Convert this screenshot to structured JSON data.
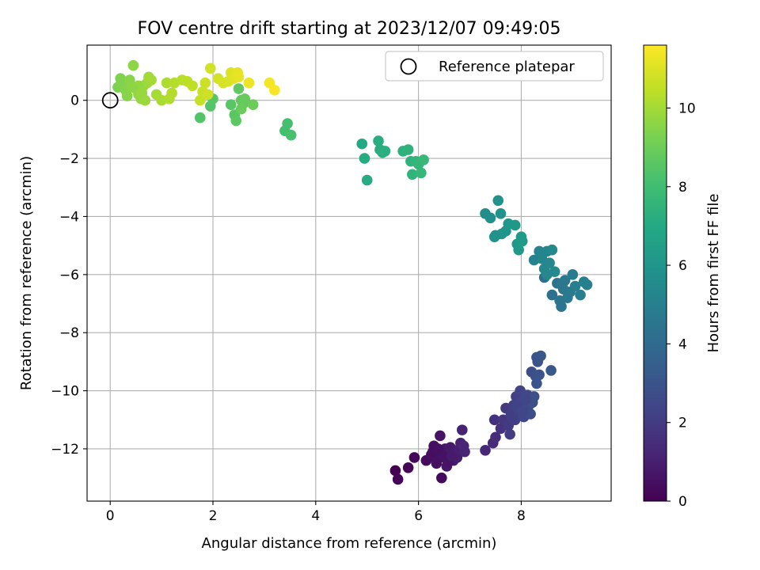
{
  "chart_data": {
    "type": "scatter",
    "title": "FOV centre drift starting at 2023/12/07 09:49:05",
    "xlabel": "Angular distance from reference (arcmin)",
    "ylabel": "Rotation from reference (arcmin)",
    "xlim": [
      -0.45,
      9.75
    ],
    "ylim": [
      -13.8,
      1.9
    ],
    "xticks": [
      0,
      2,
      4,
      6,
      8
    ],
    "xtick_labels": [
      "0",
      "2",
      "4",
      "6",
      "8"
    ],
    "yticks": [
      0,
      -2,
      -4,
      -6,
      -8,
      -10,
      -12
    ],
    "ytick_labels": [
      "0",
      "−2",
      "−4",
      "−6",
      "−8",
      "−10",
      "−12"
    ],
    "grid": true,
    "legend": {
      "position": "top-right",
      "entries": [
        "Reference platepar"
      ]
    },
    "reference_point": {
      "x": 0,
      "y": 0
    },
    "colorbar": {
      "label": "Hours from first FF file",
      "range": [
        0,
        11.6
      ],
      "ticks": [
        0,
        2,
        4,
        6,
        8,
        10
      ],
      "tick_labels": [
        "0",
        "2",
        "4",
        "6",
        "8",
        "10"
      ],
      "colormap": "viridis"
    },
    "points": [
      {
        "x": 5.55,
        "y": -12.75,
        "t": 0.0
      },
      {
        "x": 5.6,
        "y": -13.05,
        "t": 0.1
      },
      {
        "x": 5.8,
        "y": -12.65,
        "t": 0.15
      },
      {
        "x": 5.92,
        "y": -12.3,
        "t": 0.2
      },
      {
        "x": 6.45,
        "y": -13.0,
        "t": 0.3
      },
      {
        "x": 6.15,
        "y": -12.4,
        "t": 0.35
      },
      {
        "x": 6.25,
        "y": -12.2,
        "t": 0.4
      },
      {
        "x": 6.3,
        "y": -11.9,
        "t": 0.45
      },
      {
        "x": 6.35,
        "y": -12.5,
        "t": 0.5
      },
      {
        "x": 6.4,
        "y": -12.1,
        "t": 0.55
      },
      {
        "x": 6.42,
        "y": -11.55,
        "t": 0.6
      },
      {
        "x": 6.5,
        "y": -12.3,
        "t": 0.65
      },
      {
        "x": 6.52,
        "y": -12.0,
        "t": 0.7
      },
      {
        "x": 6.55,
        "y": -12.6,
        "t": 0.72
      },
      {
        "x": 6.6,
        "y": -12.2,
        "t": 0.75
      },
      {
        "x": 6.62,
        "y": -11.95,
        "t": 0.8
      },
      {
        "x": 6.68,
        "y": -12.4,
        "t": 0.85
      },
      {
        "x": 6.7,
        "y": -12.15,
        "t": 0.9
      },
      {
        "x": 6.75,
        "y": -12.3,
        "t": 0.95
      },
      {
        "x": 6.8,
        "y": -12.0,
        "t": 1.0
      },
      {
        "x": 6.82,
        "y": -11.8,
        "t": 1.05
      },
      {
        "x": 6.85,
        "y": -11.35,
        "t": 1.1
      },
      {
        "x": 6.9,
        "y": -12.1,
        "t": 1.15
      },
      {
        "x": 6.88,
        "y": -11.9,
        "t": 1.2
      },
      {
        "x": 6.35,
        "y": -12.35,
        "t": 0.5
      },
      {
        "x": 6.45,
        "y": -12.2,
        "t": 0.55
      },
      {
        "x": 6.58,
        "y": -12.45,
        "t": 0.6
      },
      {
        "x": 6.28,
        "y": -12.1,
        "t": 0.42
      },
      {
        "x": 6.65,
        "y": -12.25,
        "t": 0.82
      },
      {
        "x": 6.38,
        "y": -12.0,
        "t": 0.5
      },
      {
        "x": 7.3,
        "y": -12.05,
        "t": 1.3
      },
      {
        "x": 7.45,
        "y": -11.8,
        "t": 1.4
      },
      {
        "x": 7.5,
        "y": -11.6,
        "t": 1.5
      },
      {
        "x": 7.48,
        "y": -11.0,
        "t": 1.6
      },
      {
        "x": 7.6,
        "y": -11.3,
        "t": 1.7
      },
      {
        "x": 7.65,
        "y": -11.0,
        "t": 1.8
      },
      {
        "x": 7.7,
        "y": -10.6,
        "t": 1.9
      },
      {
        "x": 7.75,
        "y": -11.2,
        "t": 2.0
      },
      {
        "x": 7.78,
        "y": -11.5,
        "t": 2.05
      },
      {
        "x": 7.8,
        "y": -10.8,
        "t": 2.1
      },
      {
        "x": 7.85,
        "y": -10.5,
        "t": 2.15
      },
      {
        "x": 7.88,
        "y": -11.0,
        "t": 2.2
      },
      {
        "x": 7.9,
        "y": -10.2,
        "t": 2.25
      },
      {
        "x": 7.95,
        "y": -10.7,
        "t": 2.3
      },
      {
        "x": 7.98,
        "y": -10.0,
        "t": 2.35
      },
      {
        "x": 8.0,
        "y": -10.4,
        "t": 2.4
      },
      {
        "x": 8.05,
        "y": -10.9,
        "t": 2.45
      },
      {
        "x": 8.1,
        "y": -10.6,
        "t": 2.5
      },
      {
        "x": 8.12,
        "y": -10.15,
        "t": 2.55
      },
      {
        "x": 8.15,
        "y": -10.5,
        "t": 2.6
      },
      {
        "x": 8.18,
        "y": -10.8,
        "t": 2.65
      },
      {
        "x": 8.2,
        "y": -9.35,
        "t": 2.7
      },
      {
        "x": 8.22,
        "y": -10.4,
        "t": 2.75
      },
      {
        "x": 8.25,
        "y": -10.2,
        "t": 2.8
      },
      {
        "x": 8.28,
        "y": -9.5,
        "t": 2.85
      },
      {
        "x": 8.3,
        "y": -8.85,
        "t": 2.9
      },
      {
        "x": 8.32,
        "y": -9.0,
        "t": 2.95
      },
      {
        "x": 8.35,
        "y": -9.45,
        "t": 3.0
      },
      {
        "x": 8.3,
        "y": -9.75,
        "t": 3.05
      },
      {
        "x": 8.38,
        "y": -8.8,
        "t": 3.1
      },
      {
        "x": 8.58,
        "y": -9.3,
        "t": 3.2
      },
      {
        "x": 7.92,
        "y": -10.55,
        "t": 2.3
      },
      {
        "x": 8.02,
        "y": -10.7,
        "t": 2.4
      },
      {
        "x": 7.82,
        "y": -10.95,
        "t": 2.1
      },
      {
        "x": 8.08,
        "y": -10.3,
        "t": 2.45
      },
      {
        "x": 8.45,
        "y": -6.1,
        "t": 4.2
      },
      {
        "x": 8.6,
        "y": -6.7,
        "t": 4.3
      },
      {
        "x": 8.7,
        "y": -6.3,
        "t": 4.4
      },
      {
        "x": 8.75,
        "y": -6.9,
        "t": 4.5
      },
      {
        "x": 8.78,
        "y": -7.1,
        "t": 4.55
      },
      {
        "x": 8.82,
        "y": -6.5,
        "t": 4.6
      },
      {
        "x": 8.85,
        "y": -6.2,
        "t": 4.65
      },
      {
        "x": 8.9,
        "y": -6.8,
        "t": 4.7
      },
      {
        "x": 8.95,
        "y": -6.6,
        "t": 4.75
      },
      {
        "x": 9.0,
        "y": -6.0,
        "t": 4.8
      },
      {
        "x": 9.05,
        "y": -6.4,
        "t": 4.85
      },
      {
        "x": 9.15,
        "y": -6.7,
        "t": 4.9
      },
      {
        "x": 9.22,
        "y": -6.25,
        "t": 4.95
      },
      {
        "x": 9.28,
        "y": -6.35,
        "t": 5.0
      },
      {
        "x": 8.8,
        "y": -6.3,
        "t": 4.6
      },
      {
        "x": 8.25,
        "y": -5.5,
        "t": 5.1
      },
      {
        "x": 8.35,
        "y": -5.2,
        "t": 5.2
      },
      {
        "x": 8.4,
        "y": -5.45,
        "t": 5.25
      },
      {
        "x": 8.45,
        "y": -5.8,
        "t": 5.3
      },
      {
        "x": 8.5,
        "y": -5.2,
        "t": 5.35
      },
      {
        "x": 8.55,
        "y": -5.6,
        "t": 5.4
      },
      {
        "x": 8.6,
        "y": -5.15,
        "t": 5.45
      },
      {
        "x": 8.65,
        "y": -5.9,
        "t": 5.5
      },
      {
        "x": 8.5,
        "y": -6.0,
        "t": 5.4
      },
      {
        "x": 7.3,
        "y": -3.9,
        "t": 5.6
      },
      {
        "x": 7.4,
        "y": -4.05,
        "t": 5.7
      },
      {
        "x": 7.5,
        "y": -4.65,
        "t": 5.8
      },
      {
        "x": 7.55,
        "y": -3.45,
        "t": 5.85
      },
      {
        "x": 7.6,
        "y": -3.9,
        "t": 5.9
      },
      {
        "x": 7.62,
        "y": -4.6,
        "t": 5.95
      },
      {
        "x": 7.7,
        "y": -4.5,
        "t": 6.0
      },
      {
        "x": 7.75,
        "y": -4.25,
        "t": 6.05
      },
      {
        "x": 7.88,
        "y": -4.3,
        "t": 6.1
      },
      {
        "x": 7.92,
        "y": -4.95,
        "t": 6.15
      },
      {
        "x": 7.95,
        "y": -5.15,
        "t": 6.2
      },
      {
        "x": 8.0,
        "y": -4.7,
        "t": 6.25
      },
      {
        "x": 8.02,
        "y": -4.85,
        "t": 6.3
      },
      {
        "x": 7.48,
        "y": -4.7,
        "t": 5.8
      },
      {
        "x": 4.9,
        "y": -1.5,
        "t": 7.0
      },
      {
        "x": 4.95,
        "y": -2.0,
        "t": 7.05
      },
      {
        "x": 5.0,
        "y": -2.75,
        "t": 7.1
      },
      {
        "x": 5.22,
        "y": -1.4,
        "t": 7.15
      },
      {
        "x": 5.25,
        "y": -1.7,
        "t": 7.2
      },
      {
        "x": 5.3,
        "y": -1.8,
        "t": 7.25
      },
      {
        "x": 5.35,
        "y": -1.75,
        "t": 7.3
      },
      {
        "x": 5.7,
        "y": -1.75,
        "t": 7.35
      },
      {
        "x": 5.8,
        "y": -1.7,
        "t": 7.4
      },
      {
        "x": 5.85,
        "y": -2.1,
        "t": 7.45
      },
      {
        "x": 5.88,
        "y": -2.55,
        "t": 7.5
      },
      {
        "x": 5.95,
        "y": -2.1,
        "t": 7.55
      },
      {
        "x": 6.0,
        "y": -2.2,
        "t": 7.6
      },
      {
        "x": 6.05,
        "y": -2.5,
        "t": 7.65
      },
      {
        "x": 6.1,
        "y": -2.05,
        "t": 7.7
      },
      {
        "x": 3.4,
        "y": -1.05,
        "t": 8.1
      },
      {
        "x": 3.45,
        "y": -0.8,
        "t": 8.15
      },
      {
        "x": 3.52,
        "y": -1.2,
        "t": 8.2
      },
      {
        "x": 1.75,
        "y": -0.6,
        "t": 8.4
      },
      {
        "x": 1.95,
        "y": -0.2,
        "t": 8.45
      },
      {
        "x": 2.0,
        "y": 0.05,
        "t": 8.5
      },
      {
        "x": 2.35,
        "y": -0.15,
        "t": 8.55
      },
      {
        "x": 2.42,
        "y": -0.5,
        "t": 8.6
      },
      {
        "x": 2.45,
        "y": -0.7,
        "t": 8.65
      },
      {
        "x": 2.5,
        "y": 0.4,
        "t": 8.7
      },
      {
        "x": 2.55,
        "y": 0.0,
        "t": 8.75
      },
      {
        "x": 2.6,
        "y": -0.1,
        "t": 8.8
      },
      {
        "x": 2.62,
        "y": 0.05,
        "t": 8.85
      },
      {
        "x": 2.55,
        "y": -0.3,
        "t": 8.9
      },
      {
        "x": 2.78,
        "y": -0.15,
        "t": 8.95
      },
      {
        "x": 0.15,
        "y": 0.45,
        "t": 9.3
      },
      {
        "x": 0.2,
        "y": 0.75,
        "t": 9.35
      },
      {
        "x": 0.25,
        "y": 0.6,
        "t": 9.4
      },
      {
        "x": 0.3,
        "y": 0.35,
        "t": 9.45
      },
      {
        "x": 0.33,
        "y": 0.15,
        "t": 9.5
      },
      {
        "x": 0.38,
        "y": 0.7,
        "t": 9.55
      },
      {
        "x": 0.45,
        "y": 1.2,
        "t": 9.6
      },
      {
        "x": 0.5,
        "y": 0.4,
        "t": 9.65
      },
      {
        "x": 0.55,
        "y": 0.2,
        "t": 9.7
      },
      {
        "x": 0.6,
        "y": 0.05,
        "t": 9.75
      },
      {
        "x": 0.65,
        "y": 0.5,
        "t": 9.8
      },
      {
        "x": 0.68,
        "y": 0.0,
        "t": 9.85
      },
      {
        "x": 0.72,
        "y": 0.6,
        "t": 9.9
      },
      {
        "x": 0.75,
        "y": 0.8,
        "t": 9.95
      },
      {
        "x": 0.8,
        "y": 0.7,
        "t": 10.0
      },
      {
        "x": 0.9,
        "y": 0.2,
        "t": 10.05
      },
      {
        "x": 1.0,
        "y": 0.0,
        "t": 10.1
      },
      {
        "x": 1.1,
        "y": 0.6,
        "t": 10.15
      },
      {
        "x": 1.15,
        "y": 0.05,
        "t": 10.2
      },
      {
        "x": 1.2,
        "y": 0.25,
        "t": 10.25
      },
      {
        "x": 1.25,
        "y": 0.6,
        "t": 10.3
      },
      {
        "x": 1.4,
        "y": 0.7,
        "t": 10.35
      },
      {
        "x": 1.5,
        "y": 0.65,
        "t": 10.4
      },
      {
        "x": 1.6,
        "y": 0.5,
        "t": 10.45
      },
      {
        "x": 0.55,
        "y": 0.5,
        "t": 9.7
      },
      {
        "x": 0.62,
        "y": 0.25,
        "t": 9.8
      },
      {
        "x": 0.42,
        "y": 0.45,
        "t": 9.6
      },
      {
        "x": 1.75,
        "y": 0.0,
        "t": 10.6
      },
      {
        "x": 1.8,
        "y": 0.3,
        "t": 10.65
      },
      {
        "x": 1.85,
        "y": 0.6,
        "t": 10.7
      },
      {
        "x": 1.9,
        "y": 0.2,
        "t": 10.75
      },
      {
        "x": 1.95,
        "y": 1.1,
        "t": 10.8
      },
      {
        "x": 2.1,
        "y": 0.75,
        "t": 10.85
      },
      {
        "x": 2.2,
        "y": 0.6,
        "t": 10.9
      },
      {
        "x": 2.3,
        "y": 0.65,
        "t": 10.95
      },
      {
        "x": 2.35,
        "y": 0.95,
        "t": 11.0
      },
      {
        "x": 2.4,
        "y": 0.75,
        "t": 11.05
      },
      {
        "x": 2.45,
        "y": 0.8,
        "t": 11.1
      },
      {
        "x": 2.48,
        "y": 0.95,
        "t": 11.15
      },
      {
        "x": 2.5,
        "y": 0.8,
        "t": 11.2
      },
      {
        "x": 2.7,
        "y": 0.6,
        "t": 11.3
      },
      {
        "x": 3.1,
        "y": 0.6,
        "t": 11.4
      },
      {
        "x": 3.2,
        "y": 0.35,
        "t": 11.5
      }
    ]
  }
}
